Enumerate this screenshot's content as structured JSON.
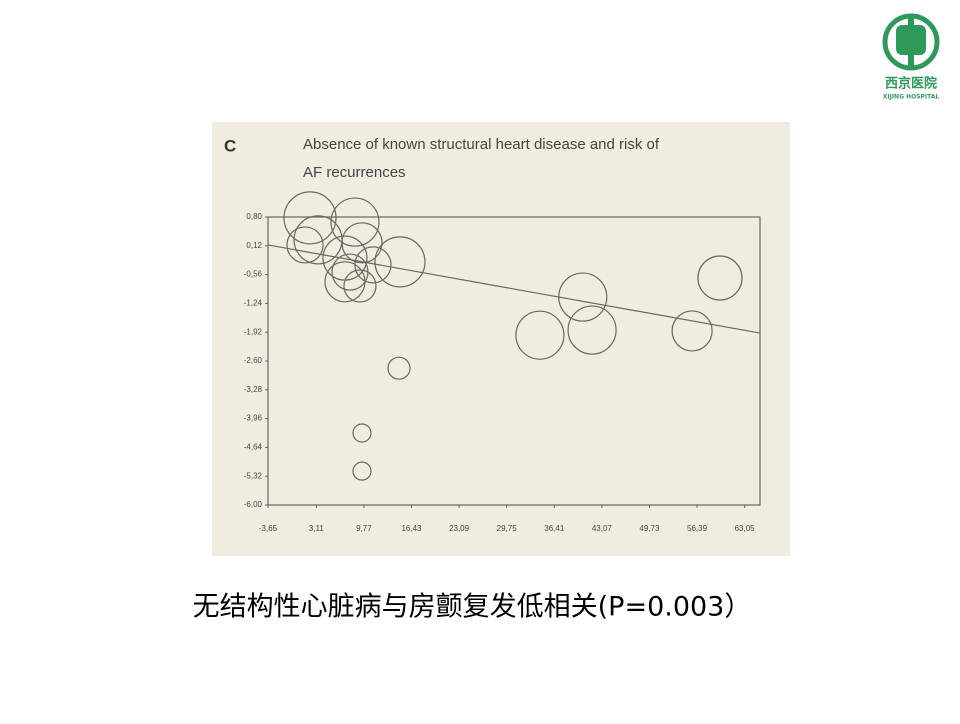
{
  "logo": {
    "name": "西京医院",
    "subtitle": "XIJING HOSPITAL"
  },
  "chart_data": {
    "type": "bubble",
    "panel_label": "C",
    "title": [
      "Absence of known  structural heart disease and risk of",
      "AF recurrences"
    ],
    "x": [
      2.23,
      3.35,
      8.52,
      9.5,
      14.82,
      7.12,
      7.82,
      11.04,
      7.12,
      9.22,
      1.53,
      34.4,
      40.4,
      41.7,
      55.7,
      59.6,
      14.68,
      9.5,
      9.5
    ],
    "y": [
      0.78,
      0.26,
      0.68,
      0.19,
      -0.26,
      -0.17,
      -0.5,
      -0.33,
      -0.73,
      -0.83,
      0.14,
      -1.99,
      -1.09,
      -1.87,
      -1.89,
      -0.64,
      -2.77,
      -4.3,
      -5.2
    ],
    "sizes": [
      26,
      24,
      24,
      20,
      25,
      22,
      18,
      18,
      20,
      16,
      18,
      24,
      24,
      24,
      20,
      22,
      11,
      9,
      9
    ],
    "color": "#6a6660",
    "trend_line": {
      "x": [
        -3.65,
        65.2
      ],
      "y": [
        0.14,
        -1.94
      ]
    },
    "xlim": [
      -3.65,
      65.2
    ],
    "ylim": [
      -6.0,
      0.8
    ],
    "xticks": [
      {
        "value": -3.65,
        "label": "-3,65"
      },
      {
        "value": 3.11,
        "label": "3,11"
      },
      {
        "value": 9.77,
        "label": "9,77"
      },
      {
        "value": 16.43,
        "label": "16,43"
      },
      {
        "value": 23.09,
        "label": "23,09"
      },
      {
        "value": 29.75,
        "label": "29,75"
      },
      {
        "value": 36.41,
        "label": "36,41"
      },
      {
        "value": 43.07,
        "label": "43,07"
      },
      {
        "value": 49.73,
        "label": "49,73"
      },
      {
        "value": 56.39,
        "label": "56,39"
      },
      {
        "value": 63.05,
        "label": "63,05"
      }
    ],
    "yticks": [
      {
        "value": 0.8,
        "label": "0,80"
      },
      {
        "value": 0.12,
        "label": "0,12"
      },
      {
        "value": -0.56,
        "label": "-0,56"
      },
      {
        "value": -1.24,
        "label": "-1,24"
      },
      {
        "value": -1.92,
        "label": "-1,92"
      },
      {
        "value": -2.6,
        "label": "-2,60"
      },
      {
        "value": -3.28,
        "label": "-3,28"
      },
      {
        "value": -3.96,
        "label": "-3,96"
      },
      {
        "value": -4.64,
        "label": "-4,64"
      },
      {
        "value": -5.32,
        "label": "-5,32"
      },
      {
        "value": -6.0,
        "label": "-6,00"
      }
    ],
    "caption": "无结构性心脏病与房颤复发低相关(P=0.003）"
  }
}
